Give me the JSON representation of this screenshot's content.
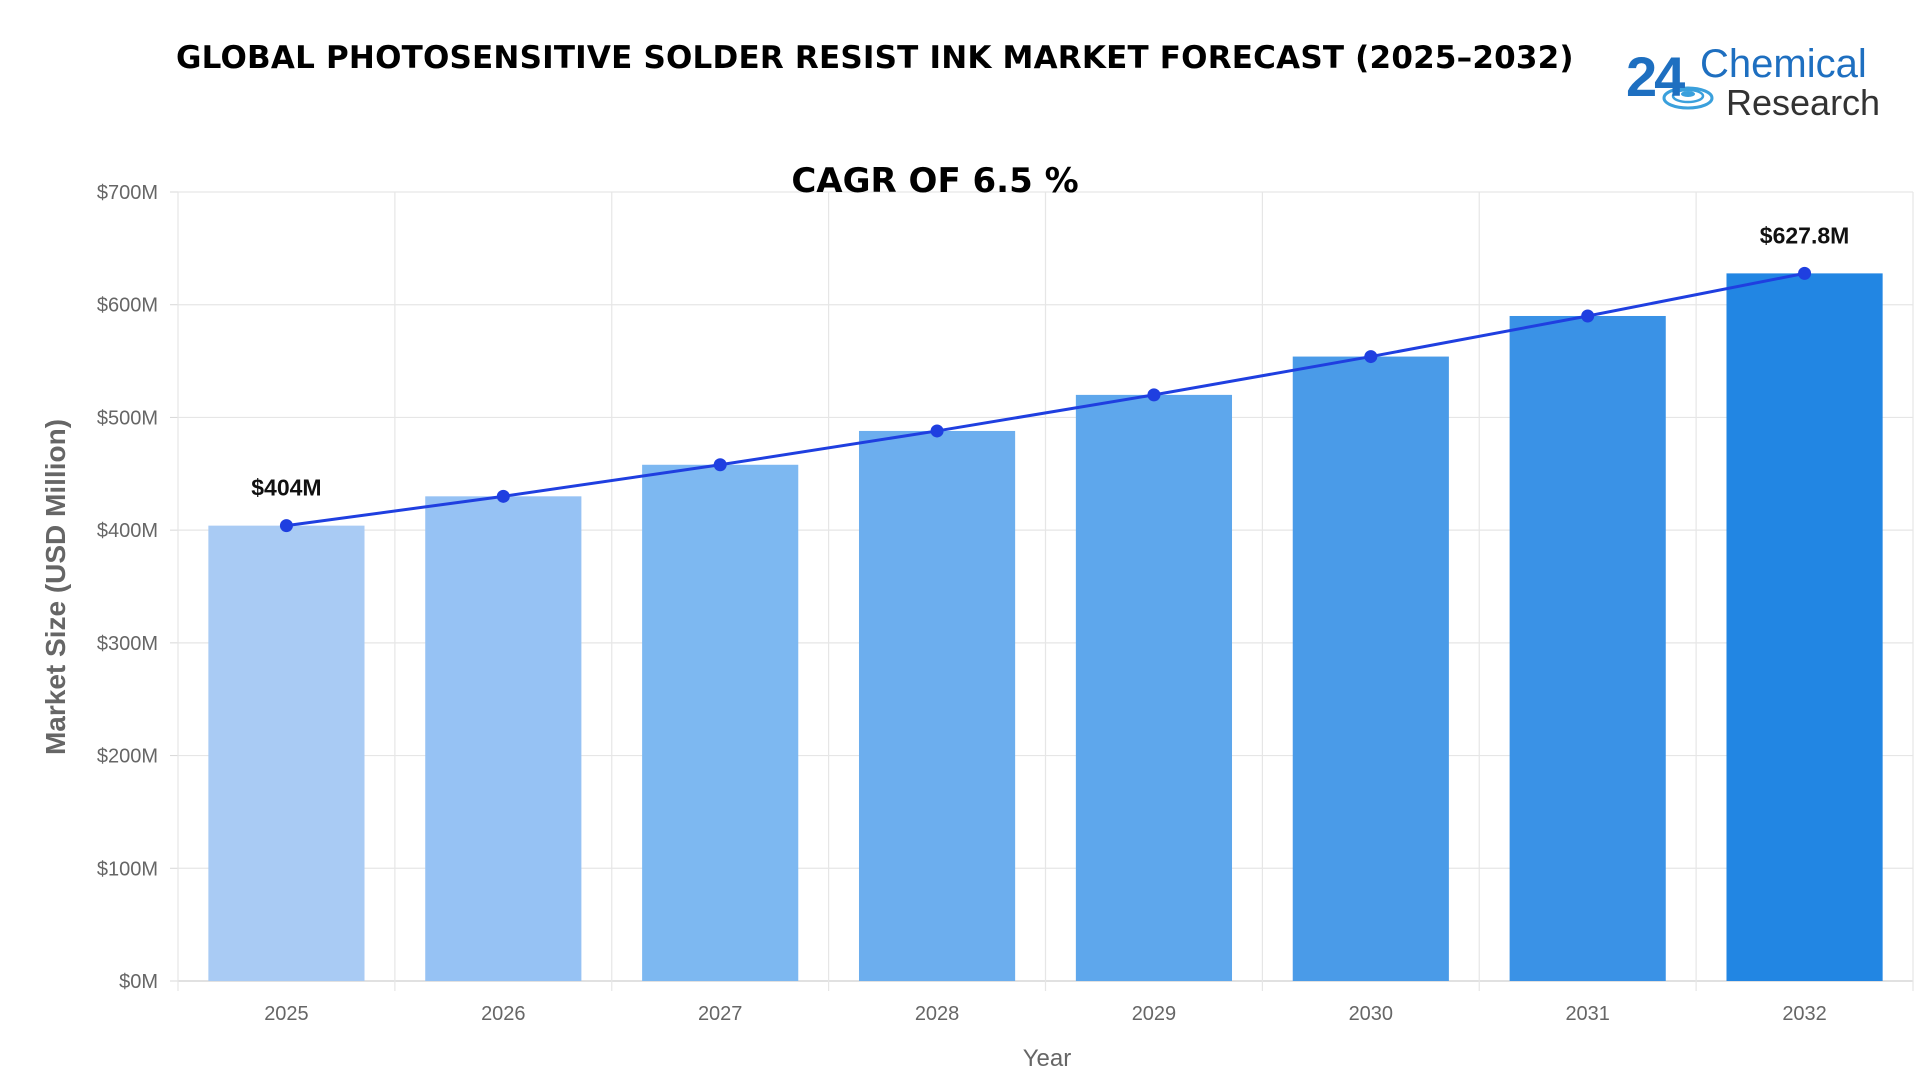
{
  "header": {
    "title": "GLOBAL PHOTOSENSITIVE SOLDER RESIST INK MARKET FORECAST (2025–2032)"
  },
  "logo": {
    "number": "24",
    "line1": "Chemical",
    "line2": "Research",
    "color": "#1e6fc0"
  },
  "chart_data": {
    "type": "bar",
    "subtitle": "CAGR OF 6.5 %",
    "xlabel": "Year",
    "ylabel": "Market Size (USD Million)",
    "categories": [
      "2025",
      "2026",
      "2027",
      "2028",
      "2029",
      "2030",
      "2031",
      "2032"
    ],
    "values": [
      404,
      430,
      458,
      488,
      520,
      554,
      590,
      627.8
    ],
    "ylim": [
      0,
      700
    ],
    "yticks": [
      {
        "value": 0,
        "label": "$0M"
      },
      {
        "value": 100,
        "label": "$100M"
      },
      {
        "value": 200,
        "label": "$200M"
      },
      {
        "value": 300,
        "label": "$300M"
      },
      {
        "value": 400,
        "label": "$400M"
      },
      {
        "value": 500,
        "label": "$500M"
      },
      {
        "value": 600,
        "label": "$600M"
      },
      {
        "value": 700,
        "label": "$700M"
      }
    ],
    "data_labels": [
      {
        "index": 0,
        "text": "$404M"
      },
      {
        "index": 7,
        "text": "$627.8M"
      }
    ],
    "bar_colors": [
      "#a9cbf4",
      "#96c2f4",
      "#7db8f1",
      "#6caeee",
      "#5ea7ec",
      "#4a9be8",
      "#3a92e6",
      "#2286e3"
    ],
    "line_color": "#1f3fe0",
    "grid": true,
    "legend": false
  }
}
